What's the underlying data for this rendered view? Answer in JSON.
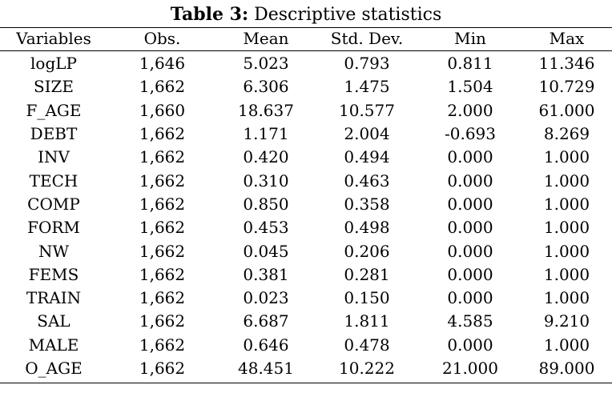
{
  "caption": {
    "label": "Table 3:",
    "title": "Descriptive statistics"
  },
  "columns": [
    "Variables",
    "Obs.",
    "Mean",
    "Std. Dev.",
    "Min",
    "Max"
  ],
  "rows": [
    [
      "logLP",
      "1,646",
      "5.023",
      "0.793",
      "0.811",
      "11.346"
    ],
    [
      "SIZE",
      "1,662",
      "6.306",
      "1.475",
      "1.504",
      "10.729"
    ],
    [
      "F_AGE",
      "1,660",
      "18.637",
      "10.577",
      "2.000",
      "61.000"
    ],
    [
      "DEBT",
      "1,662",
      "1.171",
      "2.004",
      "-0.693",
      "8.269"
    ],
    [
      "INV",
      "1,662",
      "0.420",
      "0.494",
      "0.000",
      "1.000"
    ],
    [
      "TECH",
      "1,662",
      "0.310",
      "0.463",
      "0.000",
      "1.000"
    ],
    [
      "COMP",
      "1,662",
      "0.850",
      "0.358",
      "0.000",
      "1.000"
    ],
    [
      "FORM",
      "1,662",
      "0.453",
      "0.498",
      "0.000",
      "1.000"
    ],
    [
      "NW",
      "1,662",
      "0.045",
      "0.206",
      "0.000",
      "1.000"
    ],
    [
      "FEMS",
      "1,662",
      "0.381",
      "0.281",
      "0.000",
      "1.000"
    ],
    [
      "TRAIN",
      "1,662",
      "0.023",
      "0.150",
      "0.000",
      "1.000"
    ],
    [
      "SAL",
      "1,662",
      "6.687",
      "1.811",
      "4.585",
      "9.210"
    ],
    [
      "MALE",
      "1,662",
      "0.646",
      "0.478",
      "0.000",
      "1.000"
    ],
    [
      "O_AGE",
      "1,662",
      "48.451",
      "10.222",
      "21.000",
      "89.000"
    ]
  ]
}
